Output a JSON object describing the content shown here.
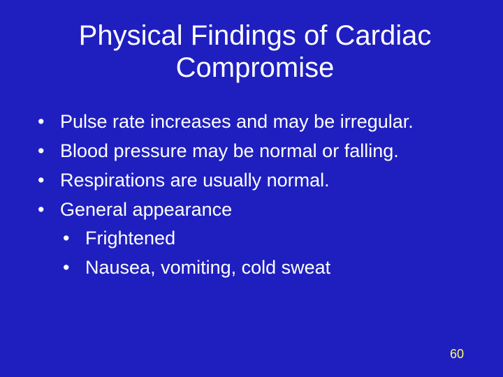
{
  "slide": {
    "background_color": "#1f1fbf",
    "text_color": "#ffffff",
    "title": "Physical Findings of Cardiac Compromise",
    "title_fontsize": 40,
    "body_fontsize": 27,
    "bullets": [
      {
        "text": "Pulse rate increases and may be irregular."
      },
      {
        "text": "Blood pressure may be normal or falling."
      },
      {
        "text": "Respirations are usually normal."
      },
      {
        "text": "General appearance",
        "sub": [
          {
            "text": "Frightened"
          },
          {
            "text": "Nausea, vomiting, cold sweat"
          }
        ]
      }
    ],
    "page_number": "60",
    "page_number_color": "#ffff66"
  }
}
